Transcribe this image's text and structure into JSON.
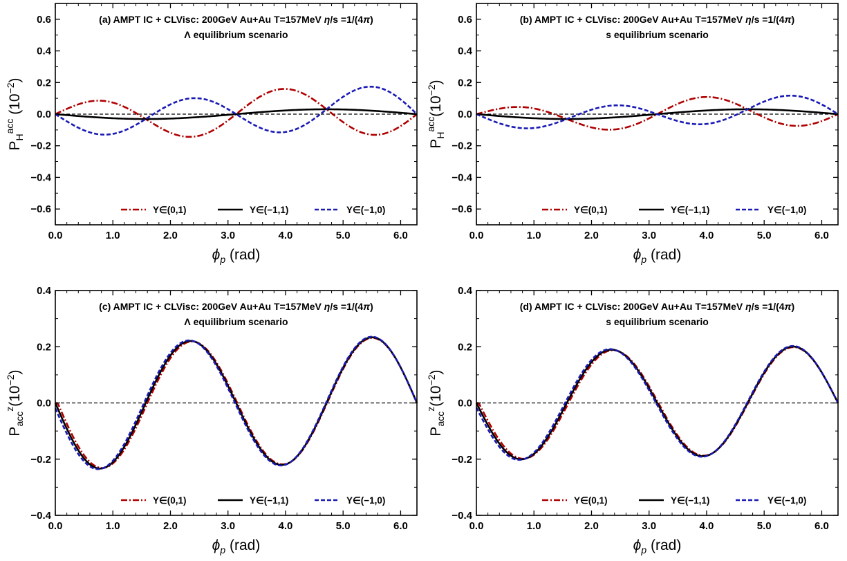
{
  "chart_data": [
    {
      "id": "a",
      "type": "line",
      "title_line1": "(a) AMPT IC + CLVisc: 200GeV Au+Au  T=157MeV  ",
      "title_eta": "η",
      "title_eta_rest": "/s =1/(4",
      "title_pi": "π",
      "title_end": ")",
      "title_line2": "Λ equilibrium scenario",
      "ylabel_main": "P",
      "ylabel_sub": "H",
      "ylabel_sup": "acc",
      "ylabel_unit": " (10",
      "ylabel_exp": "−2",
      "ylabel_close": ")",
      "xlabel_sym": "ϕ",
      "xlabel_sub": "p",
      "xlabel_unit": " (rad)",
      "xlim": [
        0,
        6.283
      ],
      "ylim": [
        -0.7,
        0.7
      ],
      "yticks": [
        -0.6,
        -0.4,
        -0.2,
        0.0,
        0.2,
        0.4,
        0.6
      ],
      "ytick_labels": [
        "−0.6",
        "−0.4",
        "−0.2",
        "0.0",
        "0.2",
        "0.4",
        "0.6"
      ],
      "xticks": [
        0,
        1,
        2,
        3,
        4,
        5,
        6
      ],
      "xtick_labels": [
        "0.0",
        "1.0",
        "2.0",
        "3.0",
        "4.0",
        "5.0",
        "6.0"
      ],
      "legend_position": "bottom",
      "series": [
        {
          "name": "Y∈(0,1)",
          "color": "#b00000",
          "style": "dashdot",
          "kind": "ph",
          "amp": 0.16,
          "bias": -0.022
        },
        {
          "name": "Y∈(−1,1)",
          "color": "#000000",
          "style": "solid",
          "kind": "ph",
          "amp": 0.0,
          "bias": -0.022
        },
        {
          "name": "Y∈(−1,0)",
          "color": "#1a1ab4",
          "style": "dashed",
          "kind": "ph",
          "amp": -0.16,
          "bias": -0.022
        }
      ]
    },
    {
      "id": "b",
      "type": "line",
      "title_line1": "(b) AMPT IC + CLVisc: 200GeV Au+Au  T=157MeV  ",
      "title_eta": "η",
      "title_eta_rest": "/s =1/(4",
      "title_pi": "π",
      "title_end": ")",
      "title_line2": "s equilibrium scenario",
      "ylabel_main": "P",
      "ylabel_sub": "H",
      "ylabel_sup": "acc",
      "ylabel_unit": "(10",
      "ylabel_exp": "−2",
      "ylabel_close": ")",
      "xlabel_sym": "ϕ",
      "xlabel_sub": "p",
      "xlabel_unit": " (rad)",
      "xlim": [
        0,
        6.283
      ],
      "ylim": [
        -0.7,
        0.7
      ],
      "yticks": [
        -0.6,
        -0.4,
        -0.2,
        0.0,
        0.2,
        0.4,
        0.6
      ],
      "ytick_labels": [
        "−0.6",
        "−0.4",
        "−0.2",
        "0.0",
        "0.2",
        "0.4",
        "0.6"
      ],
      "xticks": [
        0,
        1,
        2,
        3,
        4,
        5,
        6
      ],
      "xtick_labels": [
        "0.0",
        "1.0",
        "2.0",
        "3.0",
        "4.0",
        "5.0",
        "6.0"
      ],
      "legend_position": "bottom",
      "series": [
        {
          "name": "Y∈(0,1)",
          "color": "#b00000",
          "style": "dashdot",
          "kind": "ph",
          "amp": 0.1,
          "bias": -0.022
        },
        {
          "name": "Y∈(−1,1)",
          "color": "#000000",
          "style": "solid",
          "kind": "ph",
          "amp": 0.0,
          "bias": -0.022
        },
        {
          "name": "Y∈(−1,0)",
          "color": "#1a1ab4",
          "style": "dashed",
          "kind": "ph",
          "amp": -0.1,
          "bias": -0.022
        }
      ]
    },
    {
      "id": "c",
      "type": "line",
      "title_line1": "(c) AMPT IC + CLVisc: 200GeV Au+Au  T=157MeV  ",
      "title_eta": "η",
      "title_eta_rest": "/s =1/(4",
      "title_pi": "π",
      "title_end": ")",
      "title_line2": "Λ equilibrium scenario",
      "ylabel_main": "P",
      "ylabel_sub": "acc",
      "ylabel_sup": "z",
      "ylabel_unit": "(10",
      "ylabel_exp": "−2",
      "ylabel_close": ")",
      "xlabel_sym": "ϕ",
      "xlabel_sub": "p",
      "xlabel_unit": " (rad)",
      "xlim": [
        0,
        6.283
      ],
      "ylim": [
        -0.4,
        0.4
      ],
      "yticks": [
        -0.4,
        -0.2,
        0.0,
        0.2,
        0.4
      ],
      "ytick_labels": [
        "−0.4",
        "−0.2",
        "0.0",
        "0.2",
        "0.4"
      ],
      "xticks": [
        0,
        1,
        2,
        3,
        4,
        5,
        6
      ],
      "xtick_labels": [
        "0.0",
        "1.0",
        "2.0",
        "3.0",
        "4.0",
        "5.0",
        "6.0"
      ],
      "legend_position": "bottom",
      "series": [
        {
          "name": "Y∈(0,1)",
          "color": "#b00000",
          "style": "dashdot",
          "kind": "pz",
          "amp": 0.225,
          "shift": 0.04
        },
        {
          "name": "Y∈(−1,1)",
          "color": "#000000",
          "style": "solid",
          "kind": "pz",
          "amp": 0.227,
          "shift": 0.0
        },
        {
          "name": "Y∈(−1,0)",
          "color": "#1a1ab4",
          "style": "dashed",
          "kind": "pz",
          "amp": 0.229,
          "shift": -0.04
        }
      ]
    },
    {
      "id": "d",
      "type": "line",
      "title_line1": "(d) AMPT IC + CLVisc: 200GeV Au+Au  T=157MeV  ",
      "title_eta": "η",
      "title_eta_rest": "/s =1/(4",
      "title_pi": "π",
      "title_end": ")",
      "title_line2": "s equilibrium scenario",
      "ylabel_main": "P",
      "ylabel_sub": "acc",
      "ylabel_sup": "z",
      "ylabel_unit": "(10",
      "ylabel_exp": "−2",
      "ylabel_close": ")",
      "xlabel_sym": "ϕ",
      "xlabel_sub": "p",
      "xlabel_unit": " (rad)",
      "xlim": [
        0,
        6.283
      ],
      "ylim": [
        -0.4,
        0.4
      ],
      "yticks": [
        -0.4,
        -0.2,
        0.0,
        0.2,
        0.4
      ],
      "ytick_labels": [
        "−0.4",
        "−0.2",
        "0.0",
        "0.2",
        "0.4"
      ],
      "xticks": [
        0,
        1,
        2,
        3,
        4,
        5,
        6
      ],
      "xtick_labels": [
        "0.0",
        "1.0",
        "2.0",
        "3.0",
        "4.0",
        "5.0",
        "6.0"
      ],
      "legend_position": "bottom",
      "series": [
        {
          "name": "Y∈(0,1)",
          "color": "#b00000",
          "style": "dashdot",
          "kind": "pz",
          "amp": 0.193,
          "shift": 0.04
        },
        {
          "name": "Y∈(−1,1)",
          "color": "#000000",
          "style": "solid",
          "kind": "pz",
          "amp": 0.195,
          "shift": 0.0
        },
        {
          "name": "Y∈(−1,0)",
          "color": "#1a1ab4",
          "style": "dashed",
          "kind": "pz",
          "amp": 0.197,
          "shift": -0.04
        }
      ]
    }
  ]
}
